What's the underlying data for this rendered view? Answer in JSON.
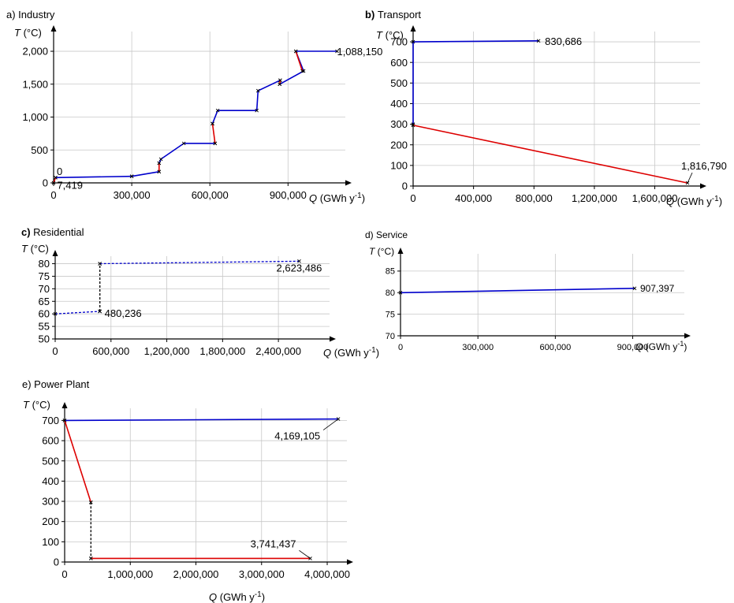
{
  "chart_data": [
    {
      "id": "a",
      "type": "line",
      "panel_label": "a) Industry",
      "ylabel": "T (°C)",
      "xlabel": "Q (GWh y-1)",
      "ylim": [
        0,
        2300
      ],
      "xlim": [
        0,
        1120000
      ],
      "yticks": [
        "0",
        "500",
        "1,000",
        "1,500",
        "2,000"
      ],
      "ytick_values": [
        0,
        500,
        1000,
        1500,
        2000
      ],
      "xticks": [
        "0",
        "300,000",
        "600,000",
        "900,000"
      ],
      "xtick_values": [
        0,
        300000,
        600000,
        900000
      ],
      "grid": true,
      "series": [
        {
          "color": "#0000cc",
          "style": "solid",
          "points": [
            [
              7419,
              80
            ],
            [
              300000,
              100
            ]
          ]
        },
        {
          "color": "#0000cc",
          "style": "solid",
          "points": [
            [
              300000,
              100
            ],
            [
              405000,
              170
            ]
          ]
        },
        {
          "color": "#dd0000",
          "style": "solid",
          "points": [
            [
              405000,
              170
            ],
            [
              405000,
              300
            ]
          ]
        },
        {
          "color": "#0000cc",
          "style": "solid",
          "points": [
            [
              405000,
              300
            ],
            [
              412000,
              360
            ],
            [
              500000,
              600
            ],
            [
              620000,
              600
            ]
          ]
        },
        {
          "color": "#dd0000",
          "style": "solid",
          "points": [
            [
              620000,
              600
            ],
            [
              610000,
              900
            ]
          ]
        },
        {
          "color": "#0000cc",
          "style": "solid",
          "points": [
            [
              610000,
              900
            ],
            [
              630000,
              1100
            ],
            [
              780000,
              1100
            ],
            [
              785000,
              1400
            ],
            [
              870000,
              1560
            ]
          ]
        },
        {
          "color": "#dd0000",
          "style": "solid",
          "points": [
            [
              870000,
              1560
            ],
            [
              868000,
              1500
            ]
          ]
        },
        {
          "color": "#0000cc",
          "style": "solid",
          "points": [
            [
              868000,
              1500
            ],
            [
              960000,
              1700
            ],
            [
              930000,
              2000
            ],
            [
              1088150,
              2000
            ]
          ]
        },
        {
          "color": "#dd0000",
          "style": "solid",
          "points": [
            [
              930000,
              2000
            ],
            [
              955000,
              1700
            ]
          ]
        },
        {
          "color": "#dd0000",
          "style": "solid",
          "points": [
            [
              0,
              0
            ],
            [
              7419,
              80
            ]
          ]
        }
      ],
      "annotations": [
        {
          "text": "0",
          "x": 0,
          "y": 0
        },
        {
          "text": "7,419",
          "x": 7419,
          "y": 80
        },
        {
          "text": "1,088,150",
          "x": 1088150,
          "y": 2000
        }
      ]
    },
    {
      "id": "b",
      "type": "line",
      "panel_label_bold": "b)",
      "panel_label": "Transport",
      "ylabel": "T (°C)",
      "xlabel": "Q (GWh y-1)",
      "ylim": [
        0,
        750
      ],
      "xlim": [
        0,
        1900000
      ],
      "yticks": [
        "0",
        "100",
        "200",
        "300",
        "400",
        "500",
        "600",
        "700"
      ],
      "ytick_values": [
        0,
        100,
        200,
        300,
        400,
        500,
        600,
        700
      ],
      "xticks": [
        "0",
        "400,000",
        "800,000",
        "1,200,000",
        "1,600,000"
      ],
      "xtick_values": [
        0,
        400000,
        800000,
        1200000,
        1600000
      ],
      "grid": true,
      "series": [
        {
          "color": "#0000cc",
          "style": "solid",
          "points": [
            [
              0,
              300
            ],
            [
              0,
              700
            ],
            [
              830686,
              705
            ]
          ]
        },
        {
          "color": "#dd0000",
          "style": "solid",
          "points": [
            [
              0,
              295
            ],
            [
              1816790,
              15
            ]
          ]
        }
      ],
      "annotations": [
        {
          "text": "830,686",
          "x": 830686,
          "y": 705
        },
        {
          "text": "1,816,790",
          "x": 1816790,
          "y": 15
        }
      ]
    },
    {
      "id": "c",
      "type": "line",
      "panel_label_bold": "c)",
      "panel_label": "Residential",
      "ylabel": "T (°C)",
      "xlabel": "Q (GWh y-1)",
      "ylim": [
        50,
        83
      ],
      "xlim": [
        0,
        2950000
      ],
      "yticks": [
        "50",
        "55",
        "60",
        "65",
        "70",
        "75",
        "80"
      ],
      "ytick_values": [
        50,
        55,
        60,
        65,
        70,
        75,
        80
      ],
      "xticks": [
        "0",
        "600,000",
        "1,200,000",
        "1,800,000",
        "2,400,000"
      ],
      "xtick_values": [
        0,
        600000,
        1200000,
        1800000,
        2400000
      ],
      "grid": true,
      "series": [
        {
          "color": "#0000cc",
          "style": "dashed",
          "points": [
            [
              0,
              60
            ],
            [
              480236,
              61
            ]
          ]
        },
        {
          "color": "#000000",
          "style": "dashed",
          "points": [
            [
              480236,
              61
            ],
            [
              480236,
              80
            ]
          ]
        },
        {
          "color": "#0000cc",
          "style": "dashed",
          "points": [
            [
              480236,
              80
            ],
            [
              2623486,
              81
            ]
          ]
        }
      ],
      "annotations": [
        {
          "text": "480,236",
          "x": 480236,
          "y": 61
        },
        {
          "text": "2,623,486",
          "x": 2623486,
          "y": 81
        }
      ]
    },
    {
      "id": "d",
      "type": "line",
      "panel_label": "d) Service",
      "ylabel": "T (°C)",
      "xlabel": "Q (GWh y-1)",
      "ylim": [
        70,
        89
      ],
      "xlim": [
        0,
        1100000
      ],
      "yticks": [
        "70",
        "75",
        "80",
        "85"
      ],
      "ytick_values": [
        70,
        75,
        80,
        85
      ],
      "xticks": [
        "0",
        "300,000",
        "600,000",
        "900,000"
      ],
      "xtick_values": [
        0,
        300000,
        600000,
        900000
      ],
      "grid": true,
      "series": [
        {
          "color": "#0000cc",
          "style": "solid",
          "points": [
            [
              0,
              80
            ],
            [
              907397,
              81
            ]
          ]
        }
      ],
      "annotations": [
        {
          "text": "907,397",
          "x": 907397,
          "y": 81
        }
      ]
    },
    {
      "id": "e",
      "type": "line",
      "panel_label": "e) Power Plant",
      "ylabel": "T (°C)",
      "xlabel": "Q  (GWh y-1)",
      "ylim": [
        0,
        760
      ],
      "xlim": [
        0,
        4300000
      ],
      "yticks": [
        "0",
        "100",
        "200",
        "300",
        "400",
        "500",
        "600",
        "700"
      ],
      "ytick_values": [
        0,
        100,
        200,
        300,
        400,
        500,
        600,
        700
      ],
      "xticks": [
        "0",
        "1,000,000",
        "2,000,000",
        "3,000,000",
        "4,000,000"
      ],
      "xtick_values": [
        0,
        1000000,
        2000000,
        3000000,
        4000000
      ],
      "grid": true,
      "series": [
        {
          "color": "#0000cc",
          "style": "solid",
          "points": [
            [
              0,
              700
            ],
            [
              4169105,
              707
            ]
          ]
        },
        {
          "color": "#dd0000",
          "style": "solid",
          "points": [
            [
              0,
              700
            ],
            [
              400000,
              295
            ]
          ]
        },
        {
          "color": "#000000",
          "style": "dashed",
          "points": [
            [
              400000,
              295
            ],
            [
              400000,
              18
            ]
          ]
        },
        {
          "color": "#dd0000",
          "style": "solid",
          "points": [
            [
              400000,
              18
            ],
            [
              3741437,
              18
            ]
          ]
        }
      ],
      "annotations": [
        {
          "text": "4,169,105",
          "x": 4169105,
          "y": 707
        },
        {
          "text": "3,741,437",
          "x": 3741437,
          "y": 18
        }
      ]
    }
  ]
}
